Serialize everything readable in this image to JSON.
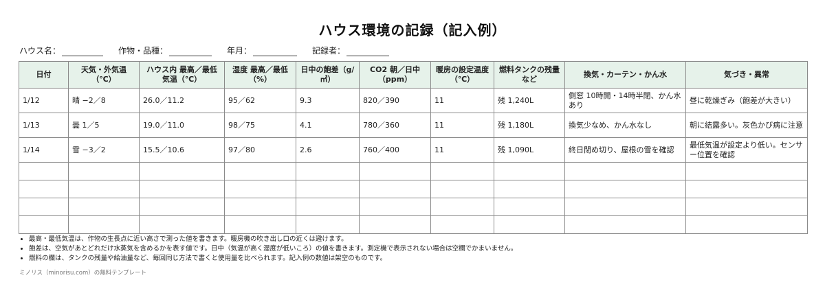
{
  "title": "ハウス環境の記録（記入例）",
  "meta_fields": [
    {
      "label": "ハウス名：",
      "line": 60
    },
    {
      "label": "作物・品種：",
      "line": 62
    },
    {
      "label": "年月：",
      "line": 64
    },
    {
      "label": "記録者：",
      "line": 62
    }
  ],
  "table": {
    "headers": [
      "日付",
      "天気・外気温（℃）",
      "ハウス内 最高／最低気温（℃）",
      "湿度 最高／最低（%）",
      "日中の飽差（g/㎥）",
      "CO2 朝／日中（ppm）",
      "暖房の設定温度（℃）",
      "燃料タンクの残量など",
      "換気・カーテン・かん水",
      "気づき・異常"
    ],
    "rows": [
      [
        "1/12",
        "晴 −2／8",
        "26.0／11.2",
        "95／62",
        "9.3",
        "820／390",
        "11",
        "残 1,240L",
        "側窓 10時開・14時半閉、かん水あり",
        "昼に乾燥ぎみ（飽差が大きい）"
      ],
      [
        "1/13",
        "曇 1／5",
        "19.0／11.0",
        "98／75",
        "4.1",
        "780／360",
        "11",
        "残 1,180L",
        "換気少なめ、かん水なし",
        "朝に結露多い。灰色かび病に注意"
      ],
      [
        "1/14",
        "雪 −3／2",
        "15.5／10.6",
        "97／80",
        "2.6",
        "760／400",
        "11",
        "残 1,090L",
        "終日閉め切り、屋根の雪を確認",
        "最低気温が設定より低い。センサー位置を確認"
      ]
    ],
    "empty_rows": 4
  },
  "notes": [
    "最高・最低気温は、作物の生長点に近い高さで測った値を書きます。暖房機の吹き出し口の近くは避けます。",
    "飽差は、空気があとどれだけ水蒸気を含めるかを表す値です。日中（気温が高く湿度が低いころ）の値を書きます。測定機で表示されない場合は空欄でかまいません。",
    "燃料の欄は、タンクの残量や給油量など、毎回同じ方法で書くと使用量を比べられます。記入例の数値は架空のものです。"
  ],
  "footer": "ミノリス（minorisu.com）の無料テンプレート"
}
